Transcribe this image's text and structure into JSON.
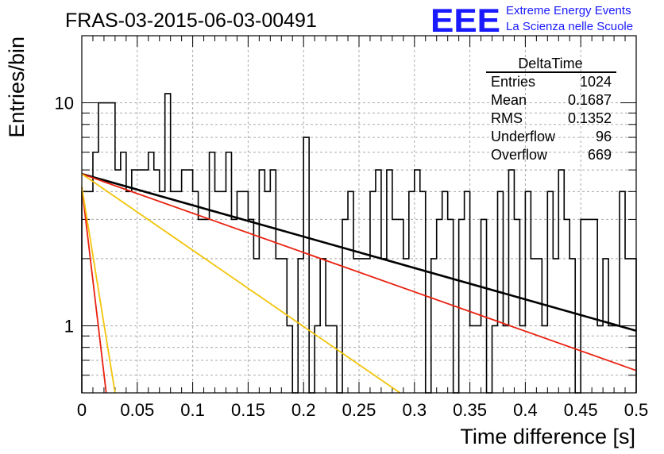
{
  "chart_data": {
    "type": "histogram",
    "title": "FRAS-03-2015-06-03-00491",
    "xlabel": "Time difference [s]",
    "ylabel": "Entries/bin",
    "xlim": [
      0,
      0.5
    ],
    "ylim": [
      0.5,
      20
    ],
    "yscale": "log",
    "grid": true,
    "x_ticks": [
      "0",
      "0.05",
      "0.1",
      "0.15",
      "0.2",
      "0.25",
      "0.3",
      "0.35",
      "0.4",
      "0.45",
      "0.5"
    ],
    "y_ticks": [
      "1",
      "10"
    ],
    "bin_width": 0.005,
    "counts": [
      4,
      4,
      6,
      10,
      10,
      10,
      5,
      6,
      4,
      5,
      5,
      5,
      6,
      5,
      4,
      11,
      4,
      4,
      5,
      5,
      4,
      3,
      3,
      6,
      4,
      4,
      6,
      3,
      4,
      4,
      3,
      2,
      5,
      4,
      5,
      2,
      2,
      1,
      0,
      2,
      7,
      0,
      1,
      2,
      1,
      1,
      0,
      3,
      4,
      2,
      2,
      2,
      4,
      5,
      2,
      5,
      3,
      3,
      2,
      4,
      5,
      4,
      0,
      2,
      3,
      4,
      3,
      0,
      3,
      4,
      1,
      1,
      3,
      0,
      1,
      4,
      1,
      5,
      3,
      1,
      4,
      2,
      2,
      1,
      4,
      2,
      5,
      3,
      2,
      0,
      3,
      3,
      3,
      1,
      2,
      1,
      1,
      4,
      2,
      2
    ],
    "series": [
      {
        "color": "#000000",
        "x": [
          0,
          0.5
        ],
        "y": [
          4.8,
          0.95
        ]
      },
      {
        "color": "#e8210f",
        "x": [
          0,
          0.5
        ],
        "y": [
          4.8,
          0.63
        ]
      },
      {
        "color": "#f2c40c",
        "x": [
          0,
          0.287
        ],
        "y": [
          4.8,
          0.5
        ]
      },
      {
        "color": "#e8210f",
        "x": [
          0,
          0.022
        ],
        "y": [
          4.2,
          0.5
        ]
      },
      {
        "color": "#f2c40c",
        "x": [
          0,
          0.03
        ],
        "y": [
          4.2,
          0.5
        ]
      }
    ]
  },
  "stats": {
    "title": "DeltaTime",
    "rows": [
      {
        "label": "Entries",
        "value": "1024"
      },
      {
        "label": "Mean",
        "value": "0.1687"
      },
      {
        "label": "RMS",
        "value": "0.1352"
      },
      {
        "label": "Underflow",
        "value": "96"
      },
      {
        "label": "Overflow",
        "value": "669"
      }
    ]
  },
  "logo": {
    "mark": "EEE",
    "line1": "Extreme Energy Events",
    "line2": "La Scienza nelle Scuole",
    "color": "#1a1aff"
  }
}
